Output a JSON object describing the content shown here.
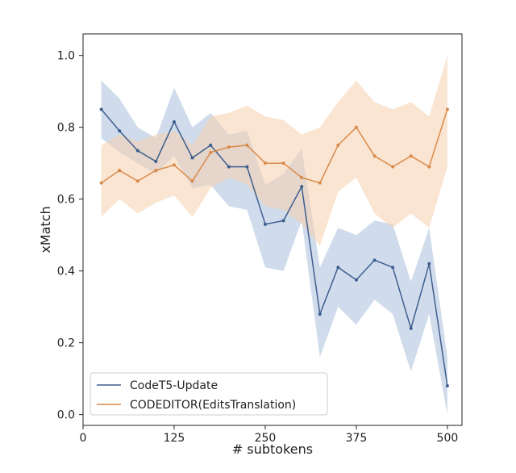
{
  "chart_data": {
    "type": "line",
    "xlabel": "# subtokens",
    "ylabel": "xMatch",
    "xlim": [
      0,
      520
    ],
    "ylim": [
      -0.03,
      1.06
    ],
    "xticks": [
      0,
      125,
      250,
      375,
      500
    ],
    "yticks": [
      0.0,
      0.2,
      0.4,
      0.6,
      0.8,
      1.0
    ],
    "ytick_labels": [
      "0.0",
      "0.2",
      "0.4",
      "0.6",
      "0.8",
      "1.0"
    ],
    "legend_position": "lower-left",
    "series": [
      {
        "name": "CodeT5-Update",
        "color": "#3f5f8f",
        "band_color": "#a9bfdd",
        "x": [
          25,
          50,
          75,
          100,
          125,
          150,
          175,
          200,
          225,
          250,
          275,
          300,
          325,
          350,
          375,
          400,
          425,
          450,
          475,
          500
        ],
        "values": [
          0.85,
          0.79,
          0.735,
          0.705,
          0.815,
          0.715,
          0.75,
          0.69,
          0.69,
          0.53,
          0.54,
          0.635,
          0.28,
          0.41,
          0.375,
          0.43,
          0.41,
          0.24,
          0.42,
          0.08
        ],
        "lower": [
          0.77,
          0.73,
          0.7,
          0.67,
          0.72,
          0.63,
          0.64,
          0.58,
          0.57,
          0.41,
          0.4,
          0.54,
          0.16,
          0.3,
          0.25,
          0.32,
          0.28,
          0.12,
          0.28,
          0.0
        ],
        "upper": [
          0.93,
          0.88,
          0.8,
          0.77,
          0.91,
          0.8,
          0.84,
          0.78,
          0.79,
          0.64,
          0.67,
          0.74,
          0.41,
          0.52,
          0.5,
          0.54,
          0.53,
          0.37,
          0.52,
          0.16
        ]
      },
      {
        "name": "CODEDITOR(EditsTranslation)",
        "color": "#d98a4a",
        "band_color": "#f5cfae",
        "x": [
          25,
          50,
          75,
          100,
          125,
          150,
          175,
          200,
          225,
          250,
          275,
          300,
          325,
          350,
          375,
          400,
          425,
          450,
          475,
          500
        ],
        "values": [
          0.645,
          0.68,
          0.65,
          0.68,
          0.695,
          0.65,
          0.73,
          0.745,
          0.75,
          0.7,
          0.7,
          0.66,
          0.645,
          0.75,
          0.8,
          0.72,
          0.69,
          0.72,
          0.69,
          0.85
        ],
        "lower": [
          0.55,
          0.6,
          0.56,
          0.59,
          0.61,
          0.55,
          0.63,
          0.66,
          0.64,
          0.58,
          0.57,
          0.53,
          0.47,
          0.62,
          0.66,
          0.56,
          0.52,
          0.56,
          0.52,
          0.69
        ],
        "upper": [
          0.75,
          0.78,
          0.76,
          0.78,
          0.79,
          0.75,
          0.83,
          0.84,
          0.86,
          0.83,
          0.82,
          0.78,
          0.8,
          0.87,
          0.93,
          0.87,
          0.85,
          0.87,
          0.83,
          1.0
        ]
      }
    ]
  }
}
